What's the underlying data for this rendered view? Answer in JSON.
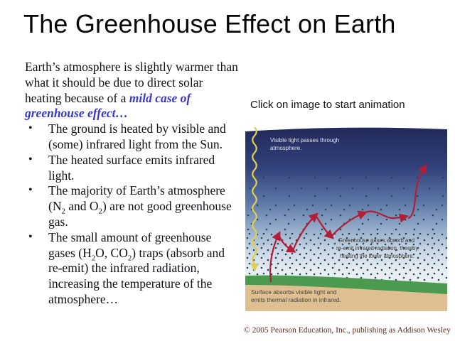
{
  "slide": {
    "title": "The Greenhouse Effect on Earth",
    "intro": {
      "text": "Earth’s atmosphere is slightly warmer than what it should be due to direct solar heating because of a ",
      "highlight": "mild case of greenhouse effect…"
    },
    "bullets": [
      {
        "segments": [
          {
            "t": "The ground is heated by visible and (some) infrared light from the Sun."
          }
        ]
      },
      {
        "segments": [
          {
            "t": "The heated surface emits infrared light."
          }
        ]
      },
      {
        "segments": [
          {
            "t": "The majority of Earth’s atmosphere (N"
          },
          {
            "t": "2",
            "sub": true
          },
          {
            "t": " and O"
          },
          {
            "t": "2",
            "sub": true
          },
          {
            "t": ") are not good greenhouse gas."
          }
        ]
      },
      {
        "segments": [
          {
            "t": "The small amount of greenhouse gases (H"
          },
          {
            "t": "2",
            "sub": true
          },
          {
            "t": "O, CO"
          },
          {
            "t": "2",
            "sub": true
          },
          {
            "t": ") traps (absorb and re-emit) the infrared radiation, increasing the temperature of the atmosphere…"
          }
        ]
      }
    ],
    "animation_hint": "Click on image to start animation",
    "diagram": {
      "labels": {
        "visible_1": "Visible light passes through",
        "visible_2": "atmosphere.",
        "greenhouse_1": "Greenhouse gases absorb and",
        "greenhouse_2": "re-emit infrared radiation, thereby",
        "greenhouse_3": "heating the lower atmosphere.",
        "surface_1": "Surface absorbs visible light and",
        "surface_2": "emits thermal radiation in infrared."
      },
      "colors": {
        "sky_top": "#212a5a",
        "sky_mid": "#5a74a4",
        "sky_low": "#e9eef4",
        "molecule_dot": "#1d4b55",
        "infrared_arrow": "#b01e38",
        "sunlight_yellow": "#ddd04e",
        "ground_green": "#4c9a50",
        "ground_tan": "#ddbf92"
      }
    },
    "copyright": "© 2005 Pearson Education, Inc., publishing as Addison Wesley",
    "text_colors": {
      "highlight_blue": "#3838c8",
      "copyright_brown": "#5d2c1f"
    }
  }
}
